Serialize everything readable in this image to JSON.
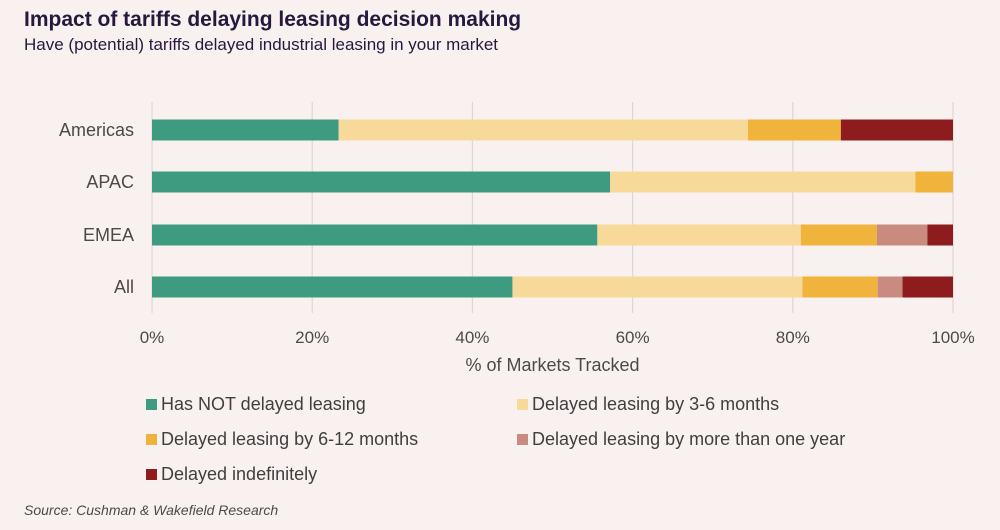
{
  "title": "Impact of tariffs delaying leasing decision making",
  "subtitle": "Have (potential) tariffs delayed industrial leasing in your market",
  "source": "Source: Cushman & Wakefield Research",
  "chart_data": {
    "type": "bar",
    "orientation": "horizontal",
    "stacked": true,
    "categories": [
      "Americas",
      "APAC",
      "EMEA",
      "All"
    ],
    "series": [
      {
        "name": "Has NOT delayed leasing",
        "color": "#3e9b80",
        "values": [
          23.3,
          57.2,
          55.6,
          45.0
        ]
      },
      {
        "name": "Delayed leasing by 3-6 months",
        "color": "#f7d99a",
        "values": [
          51.1,
          38.1,
          25.4,
          36.2
        ]
      },
      {
        "name": "Delayed leasing by 6-12 months",
        "color": "#f0b43c",
        "values": [
          11.6,
          4.7,
          9.5,
          9.4
        ]
      },
      {
        "name": "Delayed leasing by more than one year",
        "color": "#c98a80",
        "values": [
          0,
          0,
          6.3,
          3.1
        ]
      },
      {
        "name": "Delayed indefinitely",
        "color": "#8e1c1e",
        "values": [
          14.0,
          0,
          3.2,
          6.3
        ]
      }
    ],
    "xlabel": "% of Markets Tracked",
    "xlim": [
      0,
      100
    ],
    "xticks": [
      "0%",
      "20%",
      "40%",
      "60%",
      "80%",
      "100%"
    ],
    "grid": true,
    "legend_position": "bottom"
  }
}
